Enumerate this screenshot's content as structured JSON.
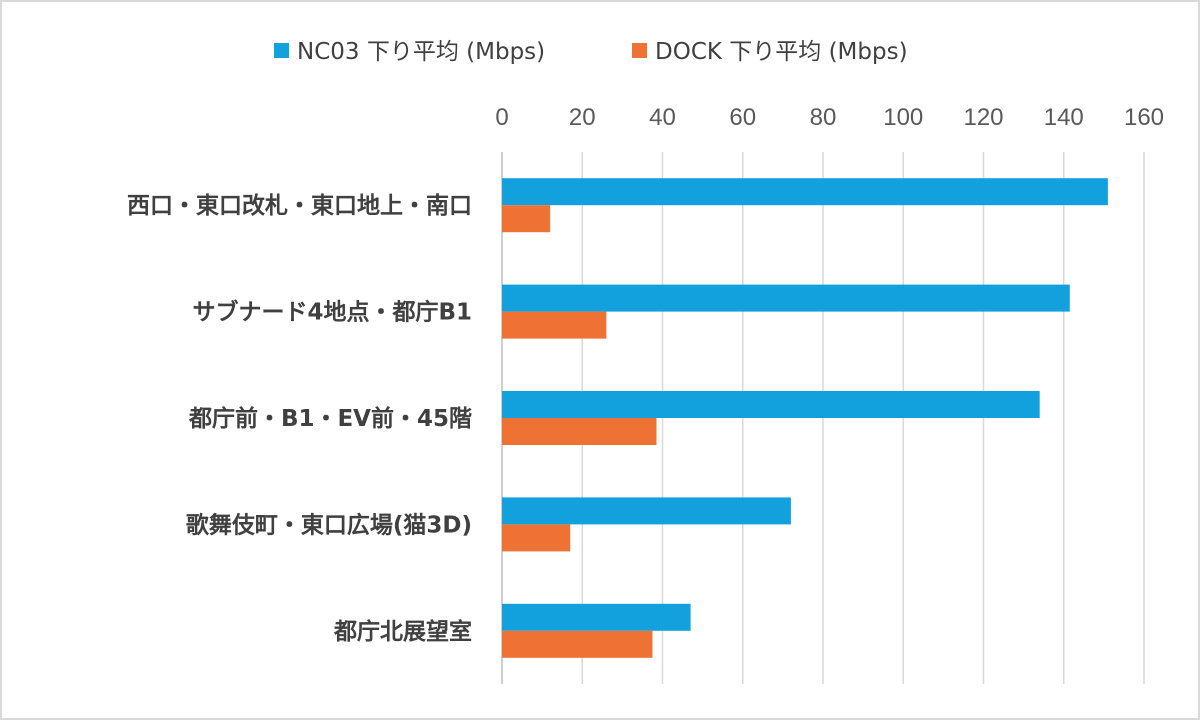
{
  "chart_data": {
    "type": "bar",
    "orientation": "horizontal",
    "categories": [
      "西口・東口改札・東口地上・南口",
      "サブナード4地点・都庁B1",
      "都庁前・B1・EV前・45階",
      "歌舞伎町・東口広場(猫3D)",
      "都庁北展望室"
    ],
    "series": [
      {
        "name": "NC03 下り平均 (Mbps)",
        "color": "#12a1dc",
        "values": [
          151,
          141.5,
          134,
          72,
          47
        ]
      },
      {
        "name": "DOCK 下り平均 (Mbps)",
        "color": "#ed7234",
        "values": [
          12,
          26,
          38.5,
          17,
          37.5
        ]
      }
    ],
    "x_ticks": [
      "0",
      "20",
      "40",
      "60",
      "80",
      "100",
      "120",
      "140",
      "160"
    ],
    "xlim": [
      0,
      160
    ],
    "axis_position": "top",
    "grid": true,
    "legend_position": "top"
  }
}
